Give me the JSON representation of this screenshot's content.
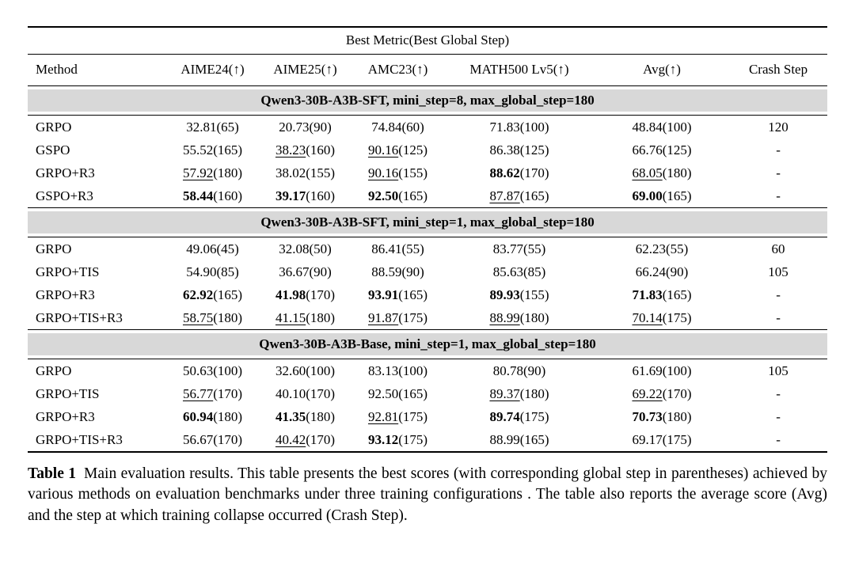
{
  "table": {
    "title": "Best Metric(Best Global Step)",
    "columns": [
      {
        "label": "Method"
      },
      {
        "label": "AIME24(↑)"
      },
      {
        "label": "AIME25(↑)"
      },
      {
        "label": "AMC23(↑)"
      },
      {
        "label": "MATH500 Lv5(↑)"
      },
      {
        "label": "Avg(↑)"
      },
      {
        "label": "Crash Step"
      }
    ],
    "sections": [
      {
        "header": "Qwen3-30B-A3B-SFT, mini_step=8, max_global_step=180",
        "rows": [
          {
            "method": "GRPO",
            "metrics": [
              {
                "value": "32.81",
                "step": "(65)",
                "style": "plain"
              },
              {
                "value": "20.73",
                "step": "(90)",
                "style": "plain"
              },
              {
                "value": "74.84",
                "step": "(60)",
                "style": "plain"
              },
              {
                "value": "71.83",
                "step": "(100)",
                "style": "plain"
              },
              {
                "value": "48.84",
                "step": "(100)",
                "style": "plain"
              }
            ],
            "crash_step": "120"
          },
          {
            "method": "GSPO",
            "metrics": [
              {
                "value": "55.52",
                "step": "(165)",
                "style": "plain"
              },
              {
                "value": "38.23",
                "step": "(160)",
                "style": "underline"
              },
              {
                "value": "90.16",
                "step": "(125)",
                "style": "underline"
              },
              {
                "value": "86.38",
                "step": "(125)",
                "style": "plain"
              },
              {
                "value": "66.76",
                "step": "(125)",
                "style": "plain"
              }
            ],
            "crash_step": "-"
          },
          {
            "method": "GRPO+R3",
            "metrics": [
              {
                "value": "57.92",
                "step": "(180)",
                "style": "underline"
              },
              {
                "value": "38.02",
                "step": "(155)",
                "style": "plain"
              },
              {
                "value": "90.16",
                "step": "(155)",
                "style": "underline"
              },
              {
                "value": "88.62",
                "step": "(170)",
                "style": "bold"
              },
              {
                "value": "68.05",
                "step": "(180)",
                "style": "underline"
              }
            ],
            "crash_step": "-"
          },
          {
            "method": "GSPO+R3",
            "metrics": [
              {
                "value": "58.44",
                "step": "(160)",
                "style": "bold"
              },
              {
                "value": "39.17",
                "step": "(160)",
                "style": "bold"
              },
              {
                "value": "92.50",
                "step": "(165)",
                "style": "bold"
              },
              {
                "value": "87.87",
                "step": "(165)",
                "style": "underline"
              },
              {
                "value": "69.00",
                "step": "(165)",
                "style": "bold"
              }
            ],
            "crash_step": "-"
          }
        ]
      },
      {
        "header": "Qwen3-30B-A3B-SFT, mini_step=1, max_global_step=180",
        "rows": [
          {
            "method": "GRPO",
            "metrics": [
              {
                "value": "49.06",
                "step": "(45)",
                "style": "plain"
              },
              {
                "value": "32.08",
                "step": "(50)",
                "style": "plain"
              },
              {
                "value": "86.41",
                "step": "(55)",
                "style": "plain"
              },
              {
                "value": "83.77",
                "step": "(55)",
                "style": "plain"
              },
              {
                "value": "62.23",
                "step": "(55)",
                "style": "plain"
              }
            ],
            "crash_step": "60"
          },
          {
            "method": "GRPO+TIS",
            "metrics": [
              {
                "value": "54.90",
                "step": "(85)",
                "style": "plain"
              },
              {
                "value": "36.67",
                "step": "(90)",
                "style": "plain"
              },
              {
                "value": "88.59",
                "step": "(90)",
                "style": "plain"
              },
              {
                "value": "85.63",
                "step": "(85)",
                "style": "plain"
              },
              {
                "value": "66.24",
                "step": "(90)",
                "style": "plain"
              }
            ],
            "crash_step": "105"
          },
          {
            "method": "GRPO+R3",
            "metrics": [
              {
                "value": "62.92",
                "step": "(165)",
                "style": "bold"
              },
              {
                "value": "41.98",
                "step": "(170)",
                "style": "bold"
              },
              {
                "value": "93.91",
                "step": "(165)",
                "style": "bold"
              },
              {
                "value": "89.93",
                "step": "(155)",
                "style": "bold"
              },
              {
                "value": "71.83",
                "step": "(165)",
                "style": "bold"
              }
            ],
            "crash_step": "-"
          },
          {
            "method": "GRPO+TIS+R3",
            "metrics": [
              {
                "value": "58.75",
                "step": "(180)",
                "style": "underline"
              },
              {
                "value": "41.15",
                "step": "(180)",
                "style": "underline"
              },
              {
                "value": "91.87",
                "step": "(175)",
                "style": "underline"
              },
              {
                "value": "88.99",
                "step": "(180)",
                "style": "underline"
              },
              {
                "value": "70.14",
                "step": "(175)",
                "style": "underline"
              }
            ],
            "crash_step": "-"
          }
        ]
      },
      {
        "header": "Qwen3-30B-A3B-Base, mini_step=1, max_global_step=180",
        "rows": [
          {
            "method": "GRPO",
            "metrics": [
              {
                "value": "50.63",
                "step": "(100)",
                "style": "plain"
              },
              {
                "value": "32.60",
                "step": "(100)",
                "style": "plain"
              },
              {
                "value": "83.13",
                "step": "(100)",
                "style": "plain"
              },
              {
                "value": "80.78",
                "step": "(90)",
                "style": "plain"
              },
              {
                "value": "61.69",
                "step": "(100)",
                "style": "plain"
              }
            ],
            "crash_step": "105"
          },
          {
            "method": "GRPO+TIS",
            "metrics": [
              {
                "value": "56.77",
                "step": "(170)",
                "style": "underline"
              },
              {
                "value": "40.10",
                "step": "(170)",
                "style": "plain"
              },
              {
                "value": "92.50",
                "step": "(165)",
                "style": "plain"
              },
              {
                "value": "89.37",
                "step": "(180)",
                "style": "underline"
              },
              {
                "value": "69.22",
                "step": "(170)",
                "style": "underline"
              }
            ],
            "crash_step": "-"
          },
          {
            "method": "GRPO+R3",
            "metrics": [
              {
                "value": "60.94",
                "step": "(180)",
                "style": "bold"
              },
              {
                "value": "41.35",
                "step": "(180)",
                "style": "bold"
              },
              {
                "value": "92.81",
                "step": "(175)",
                "style": "underline"
              },
              {
                "value": "89.74",
                "step": "(175)",
                "style": "bold"
              },
              {
                "value": "70.73",
                "step": "(180)",
                "style": "bold"
              }
            ],
            "crash_step": "-"
          },
          {
            "method": "GRPO+TIS+R3",
            "metrics": [
              {
                "value": "56.67",
                "step": "(170)",
                "style": "plain"
              },
              {
                "value": "40.42",
                "step": "(170)",
                "style": "underline"
              },
              {
                "value": "93.12",
                "step": "(175)",
                "style": "bold"
              },
              {
                "value": "88.99",
                "step": "(165)",
                "style": "plain"
              },
              {
                "value": "69.17",
                "step": "(175)",
                "style": "plain"
              }
            ],
            "crash_step": "-"
          }
        ]
      }
    ]
  },
  "caption": {
    "label": "Table 1",
    "text": "Main evaluation results. This table presents the best scores (with corresponding global step in parentheses) achieved by various methods on evaluation benchmarks under three training configurations . The table also reports the average score (Avg) and the step at which training collapse occurred (Crash Step)."
  }
}
